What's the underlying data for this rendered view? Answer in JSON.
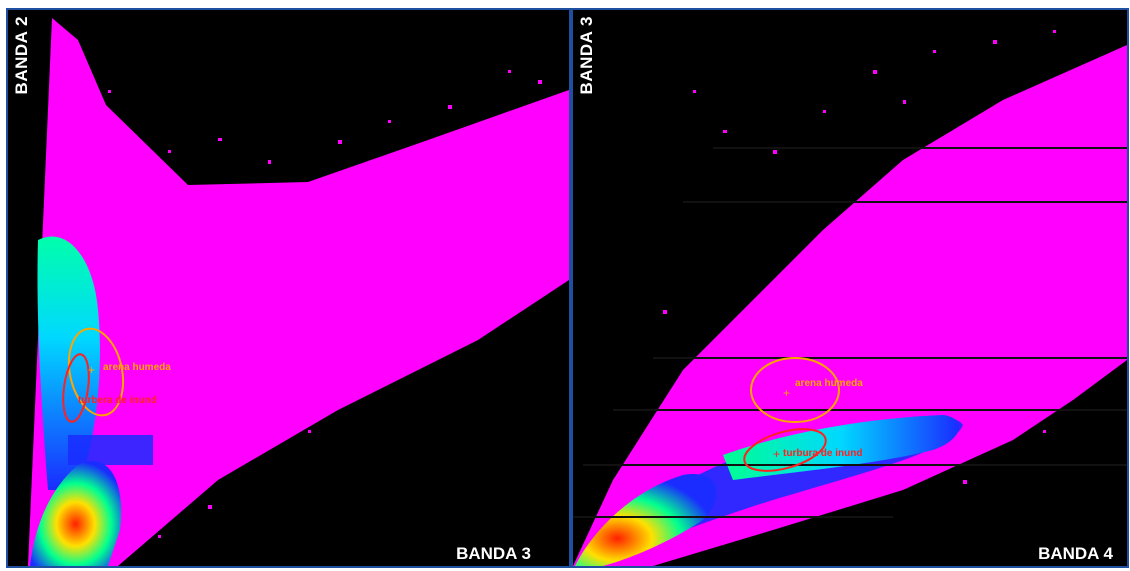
{
  "colors": {
    "background": "#000000",
    "density_low": "#ff00ff",
    "density_mid": "#1a2cff",
    "density_high": "#00e5ff",
    "density_peak": "#ff3000",
    "arena_class": "#ffa500",
    "turbera_class": "#ff2020",
    "frame": "#1f4fa0"
  },
  "chart_data": [
    {
      "type": "scatter",
      "subtype": "2D feature-space density histogram",
      "xlabel": "BANDA 3",
      "ylabel": "BANDA 2",
      "grid": false,
      "legend": "none",
      "annotations": [
        {
          "label": "arena humeda",
          "color": "#ffa500"
        },
        {
          "label": "turbera de inund",
          "color": "#ff2020"
        }
      ]
    },
    {
      "type": "scatter",
      "subtype": "2D feature-space density histogram",
      "xlabel": "BANDA 4",
      "ylabel": "BANDA 3",
      "grid": false,
      "legend": "none",
      "annotations": [
        {
          "label": "arena humeda",
          "color": "#ffa500"
        },
        {
          "label": "turbura de inund",
          "color": "#ff2020"
        }
      ]
    }
  ]
}
